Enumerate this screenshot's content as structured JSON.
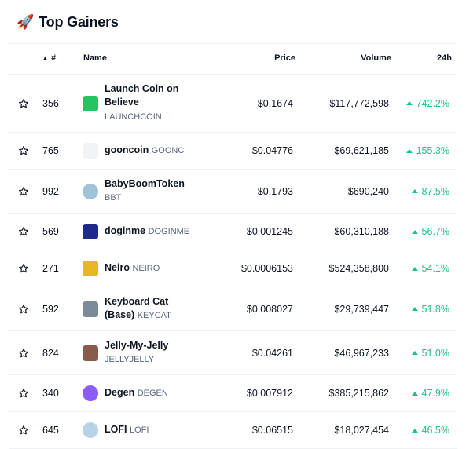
{
  "title": "Top Gainers",
  "title_icon": "rocket-icon",
  "accent_up": "#16c784",
  "columns": {
    "rank": "#",
    "name": "Name",
    "price": "Price",
    "volume": "Volume",
    "change": "24h"
  },
  "rows": [
    {
      "rank": "356",
      "name": "Launch Coin on Believe",
      "symbol": "LAUNCHCOIN",
      "price": "$0.1674",
      "volume": "$117,772,598",
      "change": "742.2%",
      "logo_color": "#22c55e",
      "logo_icon": "launchcoin-logo-icon"
    },
    {
      "rank": "765",
      "name": "gooncoin",
      "symbol": "GOONC",
      "price": "$0.04776",
      "volume": "$69,621,185",
      "change": "155.3%",
      "logo_color": "#f1f3f5",
      "logo_icon": "gooncoin-logo-icon"
    },
    {
      "rank": "992",
      "name": "BabyBoomToken",
      "symbol": "BBT",
      "price": "$0.1793",
      "volume": "$690,240",
      "change": "87.5%",
      "logo_color": "#9fc3d8",
      "logo_icon": "babyboom-logo-icon"
    },
    {
      "rank": "569",
      "name": "doginme",
      "symbol": "DOGINME",
      "price": "$0.001245",
      "volume": "$60,310,188",
      "change": "56.7%",
      "logo_color": "#1e2a8a",
      "logo_icon": "doginme-logo-icon"
    },
    {
      "rank": "271",
      "name": "Neiro",
      "symbol": "NEIRO",
      "price": "$0.0006153",
      "volume": "$524,358,800",
      "change": "54.1%",
      "logo_color": "#e7b623",
      "logo_icon": "neiro-logo-icon"
    },
    {
      "rank": "592",
      "name": "Keyboard Cat (Base)",
      "symbol": "KEYCAT",
      "price": "$0.008027",
      "volume": "$29,739,447",
      "change": "51.8%",
      "logo_color": "#7a8a9a",
      "logo_icon": "keycat-logo-icon"
    },
    {
      "rank": "824",
      "name": "Jelly-My-Jelly",
      "symbol": "JELLYJELLY",
      "price": "$0.04261",
      "volume": "$46,967,233",
      "change": "51.0%",
      "logo_color": "#8a5a4a",
      "logo_icon": "jellyjelly-logo-icon"
    },
    {
      "rank": "340",
      "name": "Degen",
      "symbol": "DEGEN",
      "price": "$0.007912",
      "volume": "$385,215,862",
      "change": "47.9%",
      "logo_color": "#8b5cf6",
      "logo_icon": "degen-logo-icon"
    },
    {
      "rank": "645",
      "name": "LOFI",
      "symbol": "LOFI",
      "price": "$0.06515",
      "volume": "$18,027,454",
      "change": "46.5%",
      "logo_color": "#b9d3e6",
      "logo_icon": "lofi-logo-icon"
    }
  ]
}
